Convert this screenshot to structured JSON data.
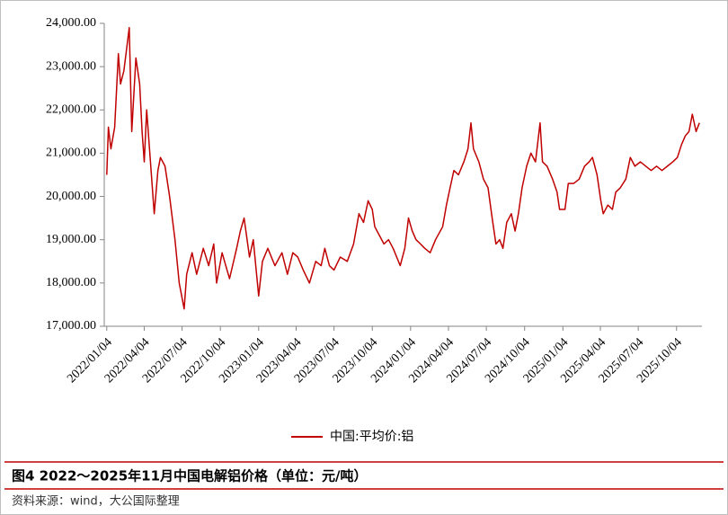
{
  "chart_data": {
    "type": "line",
    "legend_position": "bottom",
    "caption": "图4   2022～2025年11月中国电解铝价格（单位：元/吨）",
    "source": "资料来源：wind，大公国际整理",
    "xlim": [
      "2021/12/29",
      "2025/12/04"
    ],
    "xticks": [
      "2022/01/04",
      "2022/04/04",
      "2022/07/04",
      "2022/10/04",
      "2023/01/04",
      "2023/04/04",
      "2023/07/04",
      "2023/10/04",
      "2024/01/04",
      "2024/04/04",
      "2024/07/04",
      "2024/10/04",
      "2025/01/04",
      "2025/04/04",
      "2025/07/04",
      "2025/10/04"
    ],
    "ylim": [
      17000,
      24000
    ],
    "yticks": [
      {
        "value": 17000,
        "label": "17,000.00"
      },
      {
        "value": 18000,
        "label": "18,000.00"
      },
      {
        "value": 19000,
        "label": "19,000.00"
      },
      {
        "value": 20000,
        "label": "20,000.00"
      },
      {
        "value": 21000,
        "label": "21,000.00"
      },
      {
        "value": 22000,
        "label": "22,000.00"
      },
      {
        "value": 23000,
        "label": "23,000.00"
      },
      {
        "value": 24000,
        "label": "24,000.00"
      }
    ],
    "x": [
      "2022/01/04",
      "2022/01/08",
      "2022/01/14",
      "2022/01/23",
      "2022/02/01",
      "2022/02/06",
      "2022/02/14",
      "2022/02/27",
      "2022/03/05",
      "2022/03/15",
      "2022/03/24",
      "2022/03/30",
      "2022/04/04",
      "2022/04/10",
      "2022/04/19",
      "2022/04/28",
      "2022/05/07",
      "2022/05/13",
      "2022/05/24",
      "2022/06/04",
      "2022/06/17",
      "2022/06/27",
      "2022/07/09",
      "2022/07/15",
      "2022/07/28",
      "2022/08/08",
      "2022/08/24",
      "2022/09/06",
      "2022/09/18",
      "2022/09/25",
      "2022/10/08",
      "2022/10/17",
      "2022/10/26",
      "2022/11/12",
      "2022/11/21",
      "2022/11/30",
      "2022/12/13",
      "2022/12/22",
      "2023/01/04",
      "2023/01/13",
      "2023/01/26",
      "2023/02/12",
      "2023/03/01",
      "2023/03/14",
      "2023/03/27",
      "2023/04/08",
      "2023/04/21",
      "2023/05/06",
      "2023/05/21",
      "2023/06/03",
      "2023/06/12",
      "2023/06/23",
      "2023/07/04",
      "2023/07/19",
      "2023/08/05",
      "2023/08/20",
      "2023/09/02",
      "2023/09/13",
      "2023/09/24",
      "2023/10/04",
      "2023/10/10",
      "2023/10/21",
      "2023/11/01",
      "2023/11/12",
      "2023/11/23",
      "2023/12/10",
      "2023/12/21",
      "2023/12/30",
      "2024/01/08",
      "2024/01/17",
      "2024/01/28",
      "2024/02/07",
      "2024/02/20",
      "2024/03/04",
      "2024/03/21",
      "2024/03/30",
      "2024/04/08",
      "2024/04/17",
      "2024/04/28",
      "2024/05/11",
      "2024/05/21",
      "2024/05/28",
      "2024/06/03",
      "2024/06/16",
      "2024/06/27",
      "2024/07/08",
      "2024/07/18",
      "2024/07/27",
      "2024/08/05",
      "2024/08/13",
      "2024/08/22",
      "2024/09/02",
      "2024/09/11",
      "2024/09/19",
      "2024/09/28",
      "2024/10/09",
      "2024/10/19",
      "2024/10/30",
      "2024/11/10",
      "2024/11/16",
      "2024/11/27",
      "2024/12/10",
      "2024/12/21",
      "2024/12/27",
      "2025/01/09",
      "2025/01/17",
      "2025/01/30",
      "2025/02/12",
      "2025/02/25",
      "2025/03/08",
      "2025/03/16",
      "2025/03/27",
      "2025/04/05",
      "2025/04/11",
      "2025/04/22",
      "2025/05/03",
      "2025/05/11",
      "2025/05/22",
      "2025/06/04",
      "2025/06/15",
      "2025/06/26",
      "2025/07/09",
      "2025/07/22",
      "2025/08/04",
      "2025/08/17",
      "2025/08/30",
      "2025/09/12",
      "2025/09/25",
      "2025/10/06",
      "2025/10/16",
      "2025/10/25",
      "2025/11/03",
      "2025/11/11",
      "2025/11/20",
      "2025/11/28"
    ],
    "series": [
      {
        "name": "中国:平均价:铝",
        "color": "#c00000",
        "values": [
          20500,
          21600,
          21100,
          21600,
          23300,
          22600,
          22900,
          23900,
          21500,
          23200,
          22600,
          21500,
          20800,
          22000,
          20800,
          19600,
          20600,
          20900,
          20700,
          20000,
          19000,
          18000,
          17400,
          18200,
          18700,
          18200,
          18800,
          18400,
          18900,
          18000,
          18700,
          18400,
          18100,
          18800,
          19200,
          19500,
          18600,
          19000,
          17700,
          18500,
          18800,
          18400,
          18700,
          18200,
          18700,
          18600,
          18300,
          18000,
          18500,
          18400,
          18800,
          18400,
          18300,
          18600,
          18500,
          18900,
          19600,
          19400,
          19900,
          19700,
          19300,
          19100,
          18900,
          19000,
          18800,
          18400,
          18800,
          19500,
          19200,
          19000,
          18900,
          18800,
          18700,
          19000,
          19300,
          19800,
          20200,
          20600,
          20500,
          20800,
          21100,
          21700,
          21100,
          20800,
          20400,
          20200,
          19500,
          18900,
          19000,
          18800,
          19400,
          19600,
          19200,
          19600,
          20200,
          20700,
          21000,
          20800,
          21700,
          20800,
          20700,
          20400,
          20100,
          19700,
          19700,
          20300,
          20300,
          20400,
          20700,
          20800,
          20900,
          20500,
          19900,
          19600,
          19800,
          19700,
          20100,
          20200,
          20400,
          20900,
          20700,
          20800,
          20700,
          20600,
          20700,
          20600,
          20700,
          20800,
          20900,
          21200,
          21400,
          21500,
          21900,
          21500,
          21700
        ]
      }
    ]
  }
}
